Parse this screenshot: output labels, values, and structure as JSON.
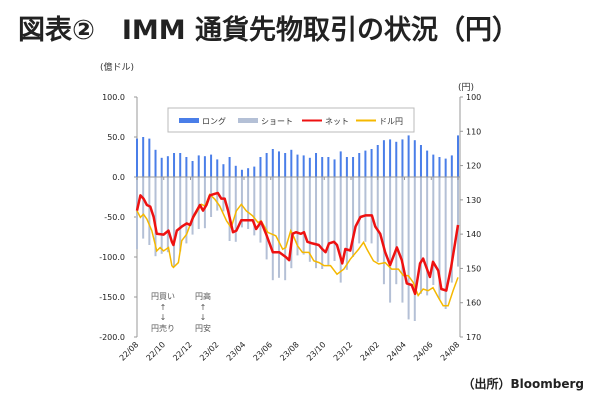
{
  "title": "図表②　IMM 通貨先物取引の状況（円）",
  "source": "（出所）Bloomberg",
  "chart_data": {
    "type": "bar+line",
    "title": "図表②　IMM 通貨先物取引の状況（円）",
    "left_axis": {
      "unit": "(億ドル)",
      "range": [
        -200,
        100
      ],
      "ticks": [
        100,
        50,
        0,
        -50,
        -100,
        -150,
        -200
      ],
      "tick_labels": [
        "100.0",
        "50.0",
        "0.0",
        "-50.0",
        "-100.0",
        "-150.0",
        "-200.0"
      ]
    },
    "right_axis": {
      "unit": "(円)",
      "range": [
        100,
        170
      ],
      "inverted": true,
      "ticks": [
        100,
        110,
        120,
        130,
        140,
        150,
        160,
        170
      ],
      "tick_labels": [
        "100",
        "110",
        "120",
        "130",
        "140",
        "150",
        "160",
        "170"
      ]
    },
    "x_axis": {
      "unit": "weeks since 2022/08",
      "range": [
        0,
        104
      ],
      "tick_labels": [
        "22/08",
        "22/10",
        "22/12",
        "23/02",
        "23/04",
        "23/06",
        "23/08",
        "23/10",
        "23/12",
        "24/02",
        "24/04",
        "24/06",
        "24/08"
      ]
    },
    "legend": {
      "placement": "top-center",
      "entries": [
        {
          "name": "ロング",
          "color": "#4a7ee8",
          "type": "bar"
        },
        {
          "name": "ショート",
          "color": "#b4c0d6",
          "type": "bar"
        },
        {
          "name": "ネット",
          "color": "#ee1111",
          "type": "line"
        },
        {
          "name": "ドル円",
          "color": "#f5b800",
          "type": "line"
        }
      ]
    },
    "bar_weeks_step": 2,
    "long": [
      48,
      50,
      48,
      34,
      24,
      26,
      30,
      30,
      25,
      20,
      27,
      26,
      28,
      22,
      16,
      25,
      14,
      9,
      11,
      13,
      25,
      30,
      35,
      32,
      30,
      34,
      28,
      27,
      24,
      30,
      25,
      25,
      22,
      32,
      25,
      25,
      30,
      33,
      35,
      40,
      46,
      47,
      44,
      47,
      52,
      46,
      40,
      33,
      28,
      25,
      23,
      27,
      52
    ],
    "short": [
      -90,
      -77,
      -85,
      -99,
      -96,
      -94,
      -112,
      -93,
      -83,
      -72,
      -65,
      -64,
      -50,
      -42,
      -43,
      -80,
      -81,
      -63,
      -65,
      -73,
      -82,
      -103,
      -129,
      -126,
      -129,
      -114,
      -98,
      -97,
      -106,
      -114,
      -115,
      -110,
      -105,
      -132,
      -116,
      -100,
      -83,
      -81,
      -83,
      -106,
      -134,
      -157,
      -134,
      -157,
      -178,
      -180,
      -146,
      -148,
      -135,
      -153,
      -165,
      -132,
      -112
    ],
    "net": [
      [
        0,
        -42
      ],
      [
        1.1,
        -23
      ],
      [
        2.1,
        -27
      ],
      [
        3.2,
        -35
      ],
      [
        4.3,
        -37
      ],
      [
        5.4,
        -50
      ],
      [
        6.4,
        -71
      ],
      [
        8.6,
        -72
      ],
      [
        10.2,
        -67
      ],
      [
        11.3,
        -81
      ],
      [
        11.8,
        -85
      ],
      [
        12.9,
        -67
      ],
      [
        14.5,
        -62
      ],
      [
        16.1,
        -58
      ],
      [
        17.2,
        -60
      ],
      [
        18.2,
        -50
      ],
      [
        20.4,
        -35
      ],
      [
        21.4,
        -42
      ],
      [
        22.5,
        -35
      ],
      [
        23.6,
        -23
      ],
      [
        25.2,
        -21
      ],
      [
        26.2,
        -20
      ],
      [
        27.3,
        -27
      ],
      [
        28.4,
        -27
      ],
      [
        29.5,
        -42
      ],
      [
        31.1,
        -69
      ],
      [
        32.2,
        -67
      ],
      [
        33.8,
        -54
      ],
      [
        35.4,
        -54
      ],
      [
        37.5,
        -54
      ],
      [
        38.6,
        -65
      ],
      [
        40.2,
        -56
      ],
      [
        41.8,
        -71
      ],
      [
        44,
        -94
      ],
      [
        46.1,
        -94
      ],
      [
        48.2,
        -100
      ],
      [
        49.3,
        -104
      ],
      [
        50.4,
        -71
      ],
      [
        51.5,
        -69
      ],
      [
        53.1,
        -71
      ],
      [
        54.1,
        -69
      ],
      [
        55.2,
        -81
      ],
      [
        56.8,
        -83
      ],
      [
        58.9,
        -85
      ],
      [
        60,
        -90
      ],
      [
        61.1,
        -94
      ],
      [
        62.2,
        -83
      ],
      [
        63.8,
        -81
      ],
      [
        64.8,
        -85
      ],
      [
        66.5,
        -108
      ],
      [
        67.5,
        -90
      ],
      [
        69.1,
        -92
      ],
      [
        70.8,
        -62
      ],
      [
        72.4,
        -50
      ],
      [
        74,
        -48
      ],
      [
        76.1,
        -48
      ],
      [
        77.2,
        -62
      ],
      [
        78.8,
        -71
      ],
      [
        80.4,
        -94
      ],
      [
        82,
        -110
      ],
      [
        84.2,
        -88
      ],
      [
        85.8,
        -104
      ],
      [
        87.4,
        -133
      ],
      [
        89,
        -135
      ],
      [
        90.1,
        -146
      ],
      [
        91.7,
        -108
      ],
      [
        92.7,
        -102
      ],
      [
        94.9,
        -125
      ],
      [
        95.9,
        -106
      ],
      [
        97.6,
        -117
      ],
      [
        98.6,
        -140
      ],
      [
        100.2,
        -142
      ],
      [
        101.8,
        -112
      ],
      [
        104,
        -60
      ]
    ],
    "usdjpy": [
      [
        0,
        133.2
      ],
      [
        1.1,
        135.1
      ],
      [
        2.1,
        134.2
      ],
      [
        3.2,
        135.6
      ],
      [
        4.8,
        139
      ],
      [
        6.4,
        144.9
      ],
      [
        7.5,
        143.9
      ],
      [
        8.6,
        144.9
      ],
      [
        10.2,
        143.9
      ],
      [
        11.3,
        149.2
      ],
      [
        11.8,
        149.7
      ],
      [
        13.4,
        148.3
      ],
      [
        14.5,
        141.9
      ],
      [
        16.1,
        140
      ],
      [
        17.7,
        136.1
      ],
      [
        19.3,
        133.7
      ],
      [
        20.9,
        131.3
      ],
      [
        22,
        131.8
      ],
      [
        23.6,
        128.4
      ],
      [
        25.2,
        129.8
      ],
      [
        26.8,
        131.8
      ],
      [
        29,
        136.1
      ],
      [
        30.5,
        138.1
      ],
      [
        32.2,
        133.2
      ],
      [
        33.8,
        131.3
      ],
      [
        35.4,
        133.2
      ],
      [
        37.5,
        134.7
      ],
      [
        39.2,
        136.6
      ],
      [
        40.2,
        136.1
      ],
      [
        42.4,
        139.5
      ],
      [
        45,
        140.5
      ],
      [
        47.2,
        144.4
      ],
      [
        48.2,
        143.9
      ],
      [
        49.8,
        139
      ],
      [
        50.9,
        141
      ],
      [
        52,
        143.4
      ],
      [
        53.6,
        145.3
      ],
      [
        55.7,
        145.3
      ],
      [
        57.3,
        147.8
      ],
      [
        59,
        148.3
      ],
      [
        60.6,
        149.2
      ],
      [
        62.7,
        149.2
      ],
      [
        64.8,
        151.7
      ],
      [
        67,
        150.2
      ],
      [
        69.1,
        147.3
      ],
      [
        71.8,
        144.4
      ],
      [
        73.4,
        142.4
      ],
      [
        74.5,
        144.4
      ],
      [
        76.6,
        147.8
      ],
      [
        78.3,
        148.7
      ],
      [
        80.4,
        148.3
      ],
      [
        82.5,
        150.2
      ],
      [
        84.7,
        150.2
      ],
      [
        86.3,
        152.1
      ],
      [
        87.9,
        152.1
      ],
      [
        89.5,
        154.1
      ],
      [
        91.1,
        157.9
      ],
      [
        92.7,
        156
      ],
      [
        94.3,
        156.5
      ],
      [
        95.9,
        155.6
      ],
      [
        97.6,
        158.4
      ],
      [
        99.2,
        160.9
      ],
      [
        100.8,
        160.9
      ],
      [
        102.4,
        156.5
      ],
      [
        104,
        152.6
      ]
    ],
    "annotations": [
      {
        "top": "円買い",
        "bottom": "円売り",
        "up": "↑",
        "down": "↓"
      },
      {
        "top": "円高",
        "bottom": "円安",
        "up": "↑",
        "down": "↓"
      }
    ]
  }
}
